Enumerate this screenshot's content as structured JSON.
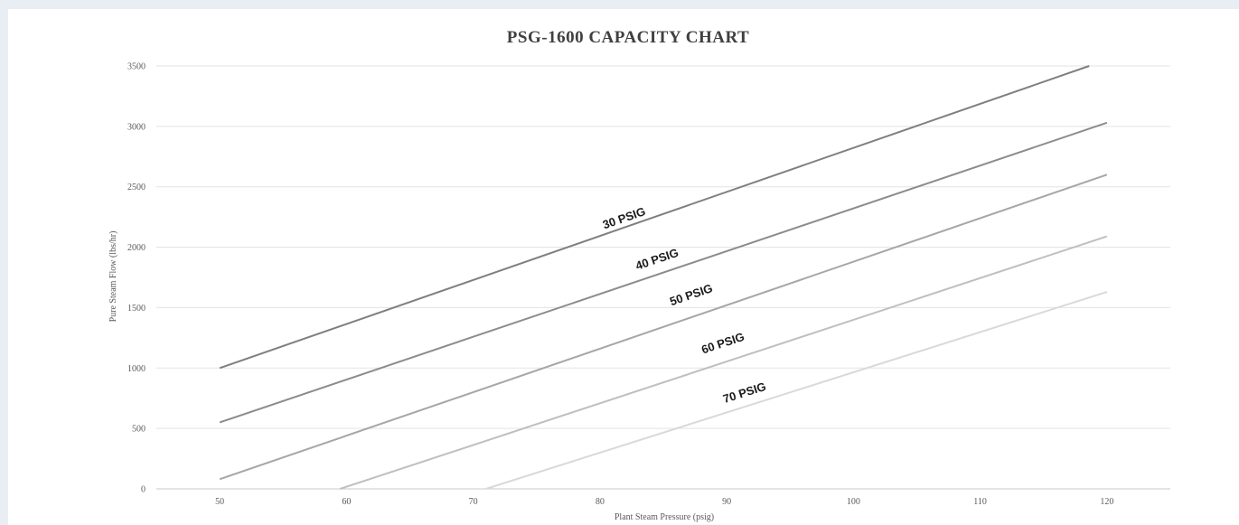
{
  "chart_data": {
    "type": "line",
    "title": "PSG-1600 CAPACITY CHART",
    "xlabel": "Plant Steam Pressure (psig)",
    "ylabel": "Pure Steam Flow (lbs/hr)",
    "xlim": [
      45,
      125
    ],
    "ylim": [
      0,
      3500
    ],
    "x_ticks": [
      50,
      60,
      70,
      80,
      90,
      100,
      110,
      120
    ],
    "y_ticks": [
      0,
      500,
      1000,
      1500,
      2000,
      2500,
      3000,
      3500
    ],
    "grid": "horizontal",
    "legend": "inline labels on lines",
    "series": [
      {
        "name": "30 PSIG",
        "color": "#7f7f7f",
        "points": [
          [
            50,
            1000
          ],
          [
            118.6,
            3500
          ]
        ],
        "label_x": 82,
        "label_y": 2210
      },
      {
        "name": "40 PSIG",
        "color": "#8c8c8c",
        "points": [
          [
            50,
            550
          ],
          [
            120,
            3030
          ]
        ],
        "label_x": 84.6,
        "label_y": 1870
      },
      {
        "name": "50 PSIG",
        "color": "#a6a6a6",
        "points": [
          [
            50,
            80
          ],
          [
            120,
            2600
          ]
        ],
        "label_x": 87.3,
        "label_y": 1575
      },
      {
        "name": "60 PSIG",
        "color": "#bfbfbf",
        "points": [
          [
            59.5,
            0
          ],
          [
            120,
            2090
          ]
        ],
        "label_x": 89.8,
        "label_y": 1175
      },
      {
        "name": "70 PSIG",
        "color": "#d9d9d9",
        "points": [
          [
            71,
            0
          ],
          [
            120,
            1630
          ]
        ],
        "label_x": 91.5,
        "label_y": 765
      }
    ]
  }
}
